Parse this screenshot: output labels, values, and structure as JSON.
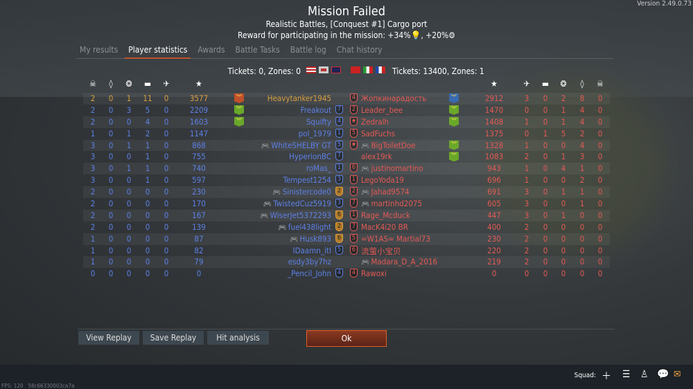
{
  "version": "Version 2.49.0.73",
  "header": {
    "title": "Mission Failed",
    "subtitle": "Realistic Battles, [Conquest #1] Cargo port",
    "reward": "Reward for participating in the mission: +34%💡, +20%⚙"
  },
  "tabs": [
    {
      "label": "My results"
    },
    {
      "label": "Player statistics",
      "active": true
    },
    {
      "label": "Awards"
    },
    {
      "label": "Battle Tasks"
    },
    {
      "label": "Battle log"
    },
    {
      "label": "Chat history"
    }
  ],
  "teams": {
    "left": {
      "tickets": "Tickets: 0, Zones: 0",
      "flags": [
        "USA",
        "Germany",
        "UK"
      ]
    },
    "right": {
      "tickets": "Tickets: 13400, Zones: 1",
      "flags": [
        "USSR",
        "Italy",
        "France"
      ]
    }
  },
  "column_icons": [
    "skull-icon",
    "diamond-icon",
    "wreath-icon",
    "tank-icon",
    "plane-icon",
    "star-icon"
  ],
  "colors": {
    "ally": "#5d80e6",
    "enemy": "#e45a55",
    "self": "#d9a040",
    "award_orange": "#c0502a",
    "award_green": "#6aa82a",
    "award_blue": "#3a6ab0"
  },
  "left_players": [
    {
      "stats": [
        "2",
        "0",
        "1",
        "11",
        "0"
      ],
      "score": "3577",
      "name": "Heavytanker1945",
      "rank": "",
      "award": "orange",
      "self": true
    },
    {
      "stats": [
        "2",
        "0",
        "3",
        "5",
        "0"
      ],
      "score": "2209",
      "name": "Freakout",
      "rank": "7",
      "award": "green"
    },
    {
      "stats": [
        "2",
        "0",
        "0",
        "4",
        "0"
      ],
      "score": "1603",
      "name": "Squifty",
      "rank": "4",
      "award": "green"
    },
    {
      "stats": [
        "1",
        "0",
        "1",
        "2",
        "0"
      ],
      "score": "1147",
      "name": "pol_1979",
      "rank": "1"
    },
    {
      "stats": [
        "3",
        "0",
        "1",
        "1",
        "0"
      ],
      "score": "868",
      "name": "WhiteSHELBY GT",
      "rank": "5",
      "pad": true
    },
    {
      "stats": [
        "3",
        "0",
        "0",
        "1",
        "0"
      ],
      "score": "755",
      "name": "HyperionBC",
      "rank": "7"
    },
    {
      "stats": [
        "3",
        "0",
        "1",
        "1",
        "0"
      ],
      "score": "740",
      "name": "roMas_",
      "rank": "1"
    },
    {
      "stats": [
        "3",
        "0",
        "0",
        "1",
        "0"
      ],
      "score": "597",
      "name": "Tempest1254",
      "rank": "3"
    },
    {
      "stats": [
        "2",
        "0",
        "0",
        "0",
        "0"
      ],
      "score": "230",
      "name": "Sinistercode0",
      "rank": "2",
      "gold": true,
      "pad": true
    },
    {
      "stats": [
        "2",
        "0",
        "0",
        "0",
        "0"
      ],
      "score": "170",
      "name": "TwistedCuz5919",
      "rank": "3",
      "pad": true
    },
    {
      "stats": [
        "2",
        "0",
        "0",
        "0",
        "0"
      ],
      "score": "167",
      "name": "WiserJet5372293",
      "rank": "6",
      "gold": true,
      "pad": true
    },
    {
      "stats": [
        "2",
        "0",
        "0",
        "0",
        "0"
      ],
      "score": "139",
      "name": "fuel438light",
      "rank": "2",
      "gold": true,
      "pad": true
    },
    {
      "stats": [
        "1",
        "0",
        "0",
        "0",
        "0"
      ],
      "score": "87",
      "name": "Husk893",
      "rank": "6",
      "gold": true,
      "pad": true
    },
    {
      "stats": [
        "1",
        "0",
        "0",
        "0",
        "0"
      ],
      "score": "82",
      "name": "IDaamn_itI",
      "rank": "5"
    },
    {
      "stats": [
        "1",
        "0",
        "0",
        "0",
        "0"
      ],
      "score": "79",
      "name": "esdy3by7hz",
      "rank": ""
    },
    {
      "stats": [
        "0",
        "0",
        "0",
        "0",
        "0"
      ],
      "score": "0",
      "name": "_Pencil_John",
      "rank": "4"
    }
  ],
  "right_players": [
    {
      "stats": [
        "3",
        "0",
        "2",
        "8",
        "0"
      ],
      "score": "2912",
      "name": "Жопкинарадость",
      "rank": "4",
      "award": "blue"
    },
    {
      "stats": [
        "0",
        "0",
        "1",
        "4",
        "0"
      ],
      "score": "1470",
      "name": "Leader_bee",
      "rank": "2",
      "award": "green"
    },
    {
      "stats": [
        "1",
        "0",
        "1",
        "4",
        "0"
      ],
      "score": "1408",
      "name": "Zedralh",
      "rank": "★",
      "award": "green"
    },
    {
      "stats": [
        "0",
        "1",
        "5",
        "2",
        "0"
      ],
      "score": "1375",
      "name": "SadFuchs",
      "rank": "5"
    },
    {
      "stats": [
        "1",
        "0",
        "0",
        "4",
        "0"
      ],
      "score": "1328",
      "name": "BigToiletDoe",
      "rank": "★",
      "award": "green",
      "pad": true
    },
    {
      "stats": [
        "2",
        "0",
        "1",
        "3",
        "0"
      ],
      "score": "1083",
      "name": "alex19rk",
      "rank": "",
      "award": "green"
    },
    {
      "stats": [
        "1",
        "0",
        "4",
        "1",
        "0"
      ],
      "score": "943",
      "name": "justinomartino",
      "rank": "6",
      "pad": true
    },
    {
      "stats": [
        "1",
        "0",
        "0",
        "2",
        "0"
      ],
      "score": "696",
      "name": "LegoYoda19",
      "rank": "1"
    },
    {
      "stats": [
        "3",
        "0",
        "1",
        "1",
        "0"
      ],
      "score": "691",
      "name": "Jahad9574",
      "rank": "2",
      "pad": true
    },
    {
      "stats": [
        "3",
        "0",
        "0",
        "1",
        "0"
      ],
      "score": "605",
      "name": "martinhd2075",
      "rank": "7",
      "pad": true
    },
    {
      "stats": [
        "3",
        "0",
        "1",
        "0",
        "0"
      ],
      "score": "447",
      "name": "Rage_Mcduck",
      "rank": "1"
    },
    {
      "stats": [
        "2",
        "0",
        "0",
        "0",
        "0"
      ],
      "score": "400",
      "name": "MacK4i20  BR",
      "rank": "7"
    },
    {
      "stats": [
        "2",
        "0",
        "0",
        "0",
        "0"
      ],
      "score": "230",
      "name": "=W1AS= Martial73",
      "rank": "5"
    },
    {
      "stats": [
        "2",
        "0",
        "0",
        "0",
        "0"
      ],
      "score": "220",
      "name": "流萤小宝贝",
      "rank": "6"
    },
    {
      "stats": [
        "2",
        "0",
        "0",
        "0",
        "0"
      ],
      "score": "219",
      "name": "Madara_D_A_2016",
      "rank": "",
      "pad": true
    },
    {
      "stats": [
        "0",
        "0",
        "0",
        "0",
        "0"
      ],
      "score": "0",
      "name": "Rawoxi",
      "rank": "4"
    }
  ],
  "buttons": {
    "view_replay": "View Replay",
    "save_replay": "Save Replay",
    "hit_analysis": "Hit analysis",
    "ok": "Ok"
  },
  "footer": {
    "squad": "Squad:",
    "fps": "FPS: 120",
    "build": "58c66330003ca7a"
  }
}
